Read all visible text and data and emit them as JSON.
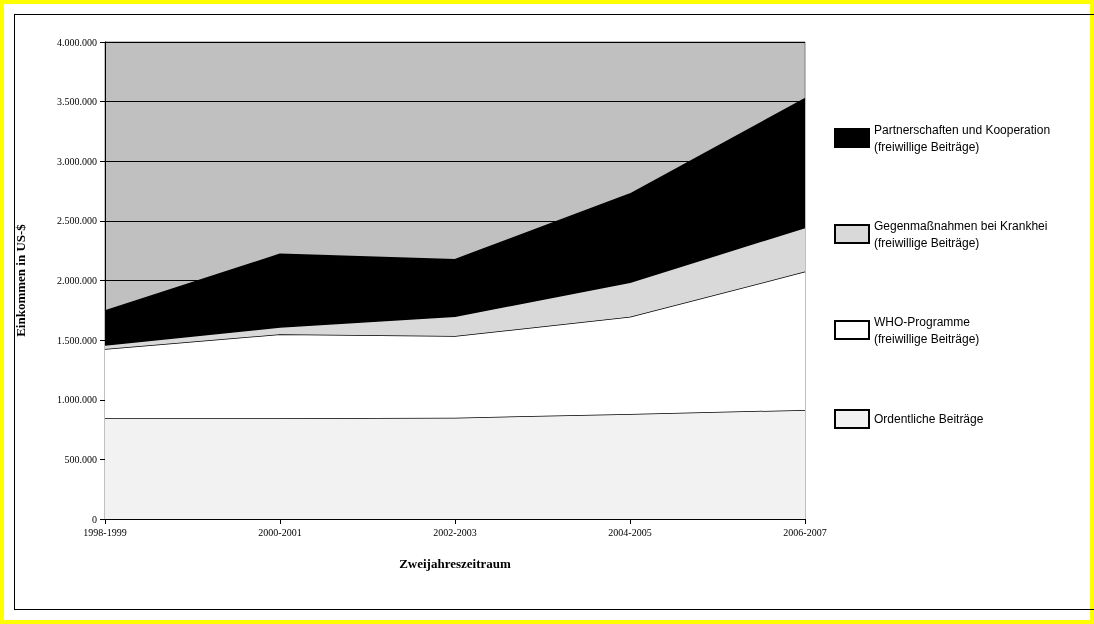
{
  "chart_data": {
    "type": "area",
    "stacked": true,
    "xlabel": "Zweijahreszeitraum",
    "ylabel": "Einkommen in US-$",
    "categories": [
      "1998-1999",
      "2000-2001",
      "2002-2003",
      "2004-2005",
      "2006-2007"
    ],
    "series": [
      {
        "name": "Ordentliche Beiträge",
        "color": "#f2f2f2",
        "values": [
          845000,
          845000,
          850000,
          880000,
          915000
        ]
      },
      {
        "name": "WHO-Programme\n(freiwillige Beiträge)",
        "color": "#ffffff",
        "values": [
          580000,
          705000,
          685000,
          815000,
          1160000
        ]
      },
      {
        "name": "Gegenmaßnahmen bei Krankhei\n(freiwillige Beiträge)",
        "color": "#d9d9d9",
        "values": [
          35000,
          60000,
          165000,
          290000,
          370000
        ]
      },
      {
        "name": "Partnerschaften und Kooperation\n(freiwillige Beiträge)",
        "color": "#000000",
        "values": [
          285000,
          610000,
          475000,
          740000,
          1080000
        ]
      }
    ],
    "ylim": [
      0,
      4000000
    ],
    "yticks": [
      {
        "value": 0,
        "label": "0"
      },
      {
        "value": 500000,
        "label": "500.000"
      },
      {
        "value": 1000000,
        "label": "1.000.000"
      },
      {
        "value": 1500000,
        "label": "1.500.000"
      },
      {
        "value": 2000000,
        "label": "2.000.000"
      },
      {
        "value": 2500000,
        "label": "2.500.000"
      },
      {
        "value": 3000000,
        "label": "3.000.000"
      },
      {
        "value": 3500000,
        "label": "3.500.000"
      },
      {
        "value": 4000000,
        "label": "4.000.000"
      }
    ],
    "grid": "y",
    "legend": "right",
    "marker": "none",
    "line_style": "solid"
  }
}
